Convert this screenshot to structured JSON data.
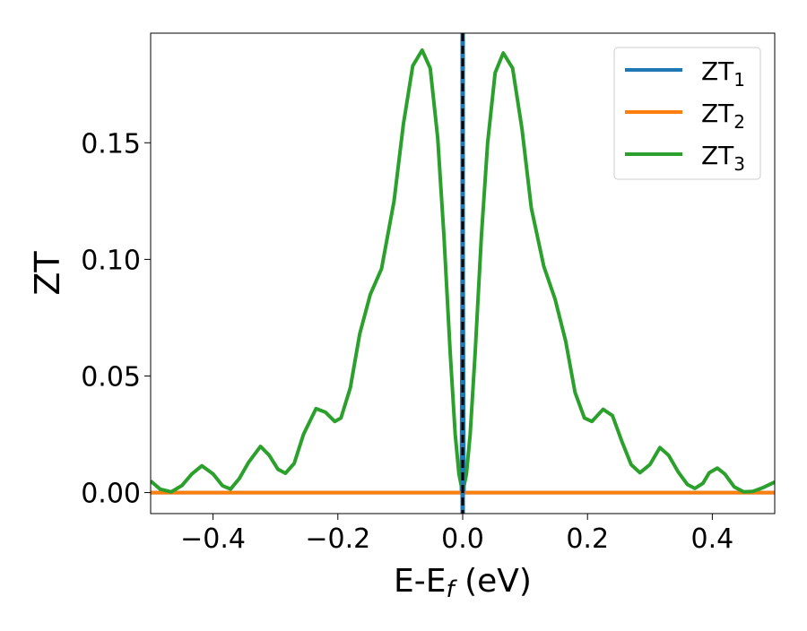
{
  "chart_data": {
    "type": "line",
    "xlabel_main": "E-E",
    "xlabel_sub": "f",
    "xlabel_unit": " (eV)",
    "ylabel": "ZT",
    "xlim": [
      -0.5,
      0.5
    ],
    "ylim": [
      -0.009,
      0.197
    ],
    "x_ticks": [
      -0.4,
      -0.2,
      0.0,
      0.2,
      0.4
    ],
    "x_tick_labels": [
      "−0.4",
      "−0.2",
      "0.0",
      "0.2",
      "0.4"
    ],
    "y_ticks": [
      0.0,
      0.05,
      0.1,
      0.15
    ],
    "y_tick_labels": [
      "0.00",
      "0.05",
      "0.10",
      "0.15"
    ],
    "grid": false,
    "legend_position": "top-right",
    "vertical_reference_line": {
      "x": 0.0,
      "style": "dashed",
      "color": "#000000"
    },
    "series": [
      {
        "name": "ZT",
        "subscript": "1",
        "color": "#1f77b4",
        "points": [
          [
            -0.5,
            0.0
          ],
          [
            -0.3,
            0.0
          ],
          [
            -0.1,
            0.0
          ],
          [
            -0.01,
            0.0
          ],
          [
            -0.002,
            0.0
          ],
          [
            -0.001,
            0.08
          ],
          [
            0.0,
            0.2
          ],
          [
            0.001,
            0.08
          ],
          [
            0.002,
            0.0
          ],
          [
            0.01,
            0.0
          ],
          [
            0.1,
            0.0
          ],
          [
            0.3,
            0.0
          ],
          [
            0.5,
            0.0
          ]
        ]
      },
      {
        "name": "ZT",
        "subscript": "2",
        "color": "#ff7f0e",
        "points": [
          [
            -0.5,
            0.0
          ],
          [
            -0.2,
            0.0
          ],
          [
            0.0,
            0.0
          ],
          [
            0.2,
            0.0
          ],
          [
            0.5,
            0.0
          ]
        ]
      },
      {
        "name": "ZT",
        "subscript": "3",
        "color": "#2ca02c",
        "points": [
          [
            -0.5,
            0.005
          ],
          [
            -0.485,
            0.0015
          ],
          [
            -0.467,
            0.0003
          ],
          [
            -0.45,
            0.003
          ],
          [
            -0.434,
            0.008
          ],
          [
            -0.418,
            0.0115
          ],
          [
            -0.4,
            0.008
          ],
          [
            -0.385,
            0.003
          ],
          [
            -0.372,
            0.0015
          ],
          [
            -0.358,
            0.006
          ],
          [
            -0.343,
            0.013
          ],
          [
            -0.324,
            0.0198
          ],
          [
            -0.31,
            0.016
          ],
          [
            -0.296,
            0.01
          ],
          [
            -0.284,
            0.0083
          ],
          [
            -0.27,
            0.0125
          ],
          [
            -0.255,
            0.025
          ],
          [
            -0.235,
            0.036
          ],
          [
            -0.22,
            0.0345
          ],
          [
            -0.205,
            0.0305
          ],
          [
            -0.195,
            0.032
          ],
          [
            -0.18,
            0.045
          ],
          [
            -0.165,
            0.068
          ],
          [
            -0.148,
            0.085
          ],
          [
            -0.13,
            0.096
          ],
          [
            -0.11,
            0.125
          ],
          [
            -0.095,
            0.158
          ],
          [
            -0.08,
            0.183
          ],
          [
            -0.065,
            0.1897
          ],
          [
            -0.052,
            0.182
          ],
          [
            -0.04,
            0.152
          ],
          [
            -0.03,
            0.11
          ],
          [
            -0.02,
            0.06
          ],
          [
            -0.012,
            0.025
          ],
          [
            -0.006,
            0.008
          ],
          [
            0.0,
            0.0
          ],
          [
            0.006,
            0.008
          ],
          [
            0.012,
            0.025
          ],
          [
            0.02,
            0.06
          ],
          [
            0.03,
            0.11
          ],
          [
            0.04,
            0.15
          ],
          [
            0.052,
            0.18
          ],
          [
            0.065,
            0.1885
          ],
          [
            0.08,
            0.182
          ],
          [
            0.095,
            0.156
          ],
          [
            0.11,
            0.122
          ],
          [
            0.13,
            0.097
          ],
          [
            0.148,
            0.083
          ],
          [
            0.165,
            0.065
          ],
          [
            0.18,
            0.043
          ],
          [
            0.195,
            0.032
          ],
          [
            0.207,
            0.0305
          ],
          [
            0.225,
            0.0357
          ],
          [
            0.24,
            0.033
          ],
          [
            0.255,
            0.022
          ],
          [
            0.27,
            0.012
          ],
          [
            0.284,
            0.0085
          ],
          [
            0.3,
            0.012
          ],
          [
            0.316,
            0.0193
          ],
          [
            0.33,
            0.016
          ],
          [
            0.345,
            0.009
          ],
          [
            0.36,
            0.0035
          ],
          [
            0.372,
            0.0018
          ],
          [
            0.385,
            0.004
          ],
          [
            0.395,
            0.0085
          ],
          [
            0.408,
            0.0105
          ],
          [
            0.42,
            0.008
          ],
          [
            0.435,
            0.0025
          ],
          [
            0.45,
            0.0003
          ],
          [
            0.465,
            0.0005
          ],
          [
            0.48,
            0.002
          ],
          [
            0.5,
            0.0045
          ]
        ]
      }
    ]
  }
}
